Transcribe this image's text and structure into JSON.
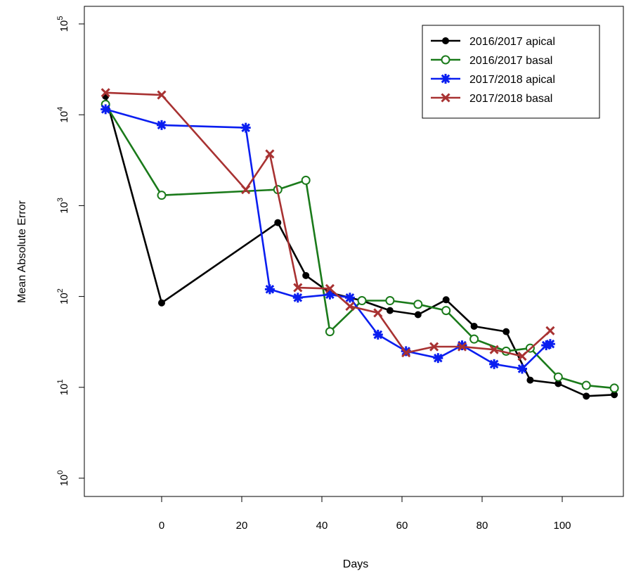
{
  "chart_data": {
    "type": "line",
    "title": "",
    "xlabel": "Days",
    "ylabel": "Mean Absolute Error",
    "xlim": [
      -16,
      115
    ],
    "ylim": [
      1,
      100000
    ],
    "yscale": "log",
    "xticks": [
      0,
      20,
      40,
      60,
      80,
      100
    ],
    "yticks": [
      {
        "value": 1,
        "base": "10",
        "exp": "0"
      },
      {
        "value": 10,
        "base": "10",
        "exp": "1"
      },
      {
        "value": 100,
        "base": "10",
        "exp": "2"
      },
      {
        "value": 1000,
        "base": "10",
        "exp": "3"
      },
      {
        "value": 10000,
        "base": "10",
        "exp": "4"
      },
      {
        "value": 100000,
        "base": "10",
        "exp": "5"
      }
    ],
    "grid": false,
    "legend_position": "top-right",
    "series": [
      {
        "name": "2016/2017 apical",
        "color": "#000000",
        "marker": "filled-circle",
        "points": [
          [
            -14,
            16000
          ],
          [
            0,
            85
          ],
          [
            29,
            650
          ],
          [
            36,
            170
          ],
          [
            42,
            110
          ],
          [
            50,
            90
          ],
          [
            57,
            70
          ],
          [
            64,
            63
          ],
          [
            71,
            92
          ],
          [
            78,
            47
          ],
          [
            86,
            41
          ],
          [
            92,
            12
          ],
          [
            99,
            11
          ],
          [
            106,
            8
          ],
          [
            113,
            8.3
          ]
        ]
      },
      {
        "name": "2016/2017 basal",
        "color": "#1a7a1a",
        "marker": "open-circle",
        "points": [
          [
            -14,
            13000
          ],
          [
            0,
            1300
          ],
          [
            29,
            1500
          ],
          [
            36,
            1900
          ],
          [
            42,
            41
          ],
          [
            50,
            90
          ],
          [
            57,
            90
          ],
          [
            64,
            82
          ],
          [
            71,
            70
          ],
          [
            78,
            34
          ],
          [
            86,
            25
          ],
          [
            92,
            27
          ],
          [
            99,
            13
          ],
          [
            106,
            10.5
          ],
          [
            113,
            9.8
          ]
        ]
      },
      {
        "name": "2017/2018 apical",
        "color": "#0a1ef0",
        "marker": "asterisk",
        "points": [
          [
            -14,
            11500
          ],
          [
            0,
            7700
          ],
          [
            21,
            7200
          ],
          [
            27,
            120
          ],
          [
            34,
            97
          ],
          [
            42,
            105
          ],
          [
            47,
            97
          ],
          [
            54,
            38
          ],
          [
            61,
            25
          ],
          [
            69,
            21
          ],
          [
            75,
            29
          ],
          [
            83,
            18
          ],
          [
            90,
            16
          ],
          [
            96,
            29
          ],
          [
            97,
            30
          ]
        ]
      },
      {
        "name": "2017/2018 basal",
        "color": "#a83232",
        "marker": "x",
        "points": [
          [
            -14,
            17500
          ],
          [
            0,
            16500
          ],
          [
            21,
            1500
          ],
          [
            27,
            3700
          ],
          [
            34,
            125
          ],
          [
            42,
            122
          ],
          [
            47,
            78
          ],
          [
            54,
            66
          ],
          [
            61,
            24
          ],
          [
            68,
            28
          ],
          [
            75,
            28
          ],
          [
            83,
            26
          ],
          [
            90,
            22
          ],
          [
            97,
            42
          ]
        ]
      }
    ]
  }
}
